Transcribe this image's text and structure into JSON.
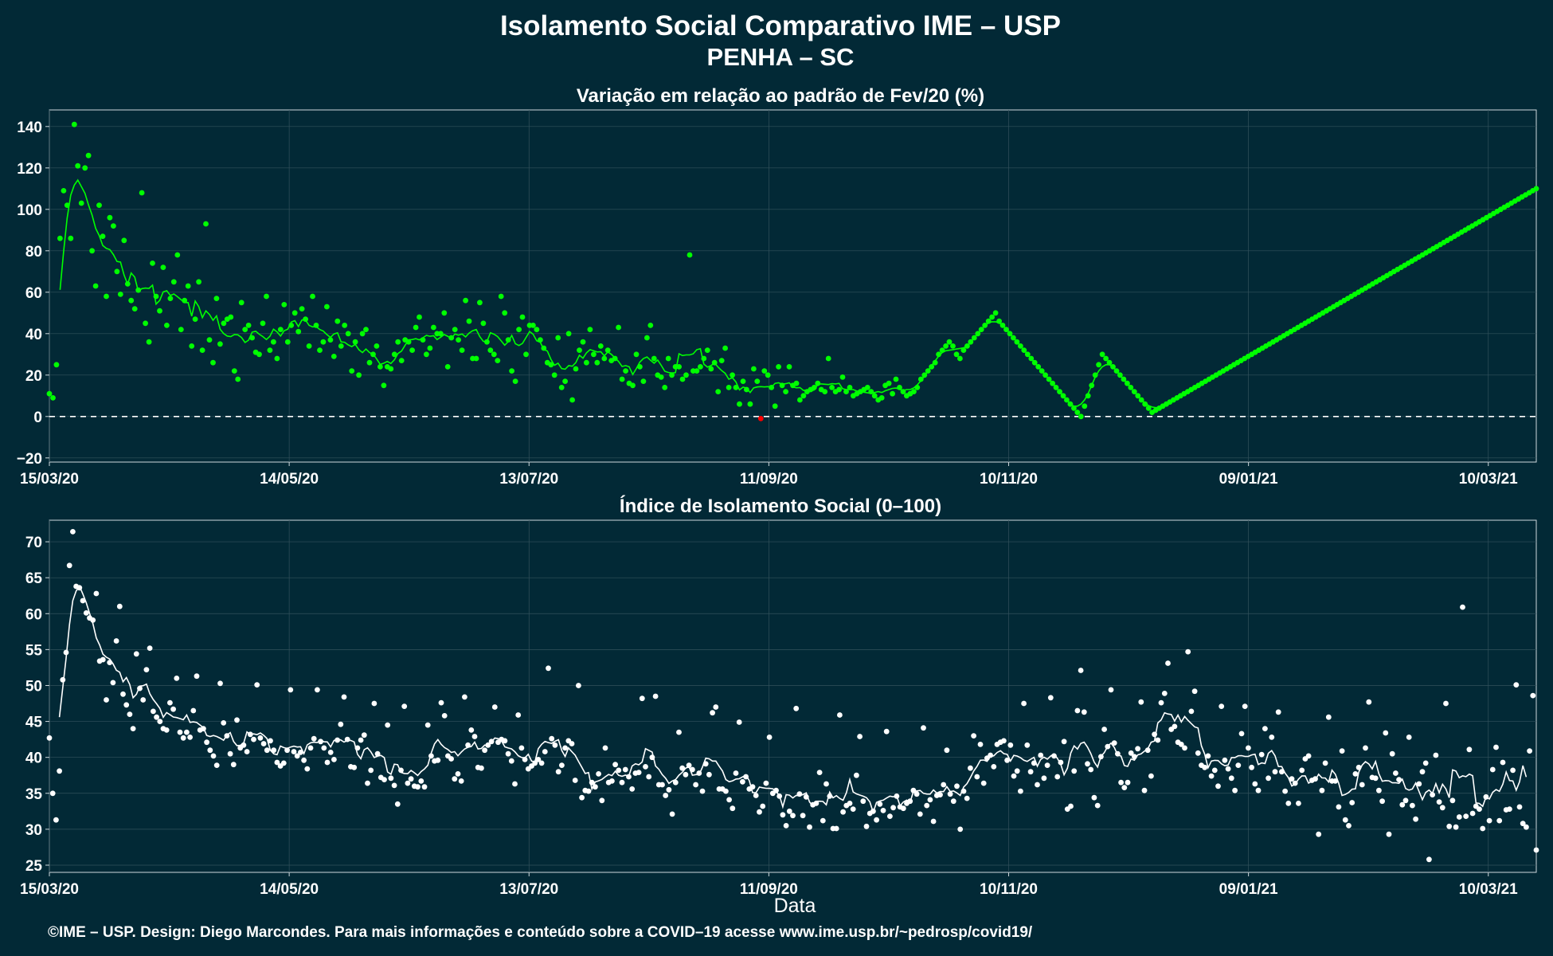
{
  "title_line1": "Isolamento Social Comparativo IME – USP",
  "title_line2": "PENHA – SC",
  "xlabel": "Data",
  "caption": "©IME – USP. Design: Diego Marcondes. Para mais informações e conteúdo sobre a COVID–19 acesse www.ime.usp.br/~pedrosp/covid19/",
  "colors": {
    "background": "#022936",
    "grid": "#33525c",
    "top_points": "#00ff00",
    "top_negative": "#ff0000",
    "bottom_points": "#ffffff"
  },
  "chart_data": [
    {
      "type": "scatter",
      "title": "Variação em relação ao padrão de Fev/20 (%)",
      "x_start": "15/03/20",
      "x_end": "22/03/21",
      "x_ticks": [
        "15/03/20",
        "14/05/20",
        "13/07/20",
        "11/09/20",
        "10/11/20",
        "09/01/21",
        "10/03/21"
      ],
      "y_ticks": [
        -20,
        0,
        20,
        40,
        60,
        80,
        100,
        120,
        140
      ],
      "ylim": [
        -22,
        148
      ],
      "reference_line": 0,
      "smoothing": "7-day moving average line",
      "series": [
        {
          "values": [
            11,
            9,
            25,
            86,
            109,
            102,
            86,
            141,
            121,
            103,
            120,
            126,
            80,
            63,
            102,
            87,
            58,
            96,
            92,
            70,
            59,
            85,
            64,
            56,
            52,
            61,
            108,
            45,
            36,
            74,
            58,
            51,
            72,
            44,
            57,
            65,
            78,
            42,
            56,
            63,
            34,
            47,
            65,
            32,
            93,
            37,
            26,
            57,
            35,
            45,
            47,
            48,
            22,
            18,
            55,
            42,
            44,
            38,
            31,
            30,
            45,
            58,
            32,
            36,
            28,
            42,
            54,
            36,
            44,
            50,
            41,
            52,
            47,
            34,
            58,
            44,
            32,
            36,
            53,
            37,
            29,
            46,
            34,
            44,
            40,
            22,
            36,
            20,
            40,
            42,
            26,
            30,
            34,
            24,
            15,
            24,
            23,
            30,
            36,
            27,
            37,
            36,
            32,
            43,
            48,
            37,
            30,
            33,
            43,
            40,
            40,
            50,
            24,
            38,
            42,
            37,
            32,
            56,
            46,
            28,
            28,
            55,
            45,
            36,
            32,
            30,
            27,
            58,
            50,
            37,
            22,
            17,
            42,
            48,
            30,
            44,
            44,
            42,
            37,
            33,
            26,
            25,
            20,
            38,
            14,
            17,
            40,
            8,
            23,
            32,
            36,
            26,
            42,
            30,
            26,
            34,
            28,
            32,
            27,
            28,
            43,
            18,
            22,
            16,
            15,
            30,
            24,
            17,
            38,
            44,
            28,
            20,
            19,
            14,
            28,
            20,
            24,
            24,
            18,
            20,
            78,
            22,
            22,
            24,
            28,
            32,
            23,
            26,
            12,
            27,
            33,
            14,
            20,
            14,
            6,
            17,
            13,
            6,
            23,
            17,
            -1,
            22,
            20,
            14,
            5,
            24,
            15,
            12,
            24,
            15,
            16,
            8,
            10,
            12,
            13,
            14,
            16,
            13,
            12,
            28,
            14,
            12,
            13,
            19,
            12,
            14,
            10,
            11,
            12,
            13,
            14,
            12,
            10,
            8,
            9,
            15,
            16,
            11,
            18,
            14,
            12,
            10,
            11,
            12,
            14,
            18,
            20,
            22,
            24,
            26,
            30,
            32,
            34,
            36,
            34,
            30,
            28,
            32,
            34,
            36,
            38,
            40,
            42,
            44,
            46,
            48,
            50,
            46,
            44,
            42,
            40,
            38,
            36,
            34,
            32,
            30,
            28,
            26,
            24,
            22,
            20,
            18,
            16,
            14,
            12,
            10,
            8,
            6,
            4,
            2,
            0,
            5,
            10,
            15,
            20,
            25,
            30,
            28,
            26,
            24,
            22,
            20,
            18,
            16,
            14,
            12,
            10,
            8,
            6,
            4,
            2,
            3,
            4,
            5,
            6,
            7,
            8,
            9,
            10,
            11,
            12,
            13,
            14,
            15,
            16,
            17,
            18,
            19,
            20,
            21,
            22,
            23,
            24,
            25,
            26,
            27,
            28,
            29,
            30,
            31,
            32,
            33,
            34,
            35,
            36,
            37,
            38,
            39,
            40,
            41,
            42,
            43,
            44,
            45,
            46,
            47,
            48,
            49,
            50,
            51,
            52,
            53,
            54,
            55,
            56,
            57,
            58,
            59,
            60,
            61,
            62,
            63,
            64,
            65,
            66,
            67,
            68,
            69,
            70,
            71,
            72,
            73,
            74,
            75,
            76,
            77,
            78,
            79,
            80,
            81,
            82,
            83,
            84,
            85,
            86,
            87,
            88,
            89,
            90,
            91,
            92,
            93,
            94,
            95,
            96,
            97,
            98,
            99,
            100,
            101,
            102,
            103,
            104,
            105,
            106,
            107,
            108,
            109,
            110
          ]
        }
      ]
    },
    {
      "type": "scatter",
      "title": "Índice de Isolamento Social (0–100)",
      "x_start": "15/03/20",
      "x_end": "22/03/21",
      "x_ticks": [
        "15/03/20",
        "14/05/20",
        "13/07/20",
        "11/09/20",
        "10/11/20",
        "09/01/21",
        "10/03/21"
      ],
      "y_ticks": [
        25,
        30,
        35,
        40,
        45,
        50,
        55,
        60,
        65,
        70
      ],
      "ylim": [
        24,
        73
      ],
      "smoothing": "7-day moving average line",
      "series": [
        {
          "values": [
            42.7,
            35,
            31.3,
            38.1,
            50.8,
            54.6,
            66.7,
            71.4,
            63.8,
            63.6,
            61.8,
            60.1,
            59.4,
            59.1,
            62.8,
            53.4,
            53.6,
            48,
            53.2,
            50.4,
            56.2,
            61,
            48.8,
            47.3,
            46,
            44,
            54.4,
            49.6,
            48,
            52.2,
            55.2,
            46.4,
            45.6,
            45,
            44,
            43.8,
            47.6,
            46.7,
            51,
            43.5,
            42.7,
            43.5,
            42.8,
            46.5,
            51.3,
            43.8,
            44,
            42.1,
            41,
            40.2,
            38.9,
            50.3,
            44.8,
            43,
            40.5,
            39,
            45.2,
            41.3,
            41.7,
            40.8,
            43.2,
            42.5,
            50.1,
            42.7,
            41.9,
            41,
            42.3,
            41,
            39.3,
            38.8,
            39.2,
            41,
            49.4,
            40.8,
            40.2,
            40.7,
            39.6,
            38.4,
            41.3,
            42.6,
            49.4,
            42.2,
            41.3,
            39.3,
            40.7,
            39.7,
            42.4,
            44.6,
            48.4,
            42.5,
            38.7,
            38.6,
            41.3,
            42.4,
            43.1,
            36.4,
            38.2,
            47.5,
            40.5,
            37.2,
            36.9,
            44.5,
            37.1,
            36.1,
            33.5,
            38.2,
            47.1,
            36.4,
            37,
            36,
            35.9,
            36.7,
            35.9,
            44.5,
            40.2,
            39.5,
            39.6,
            47.6,
            45.8,
            40.2,
            39.8,
            37,
            37.7,
            36.7,
            48.4,
            41.7,
            43.8,
            42.9,
            38.6,
            38.5,
            41,
            41.7,
            42.2,
            47,
            42.1,
            42.5,
            42.3,
            40.5,
            39.5,
            36.3,
            45.9,
            41.3,
            39.7,
            38.4,
            38.8,
            39.2,
            39.7,
            39.2,
            40.8,
            52.4,
            42.6,
            41.7,
            38,
            38.9,
            41.3,
            42.3,
            41.9,
            36.8,
            50,
            34.4,
            35.4,
            35.3,
            36.5,
            35.9,
            37.7,
            34,
            41.3,
            36.5,
            36.7,
            39,
            38.2,
            36.5,
            38.3,
            37.3,
            35.6,
            37.8,
            37.9,
            48.2,
            38.7,
            37.3,
            40,
            48.5,
            36.2,
            36.2,
            34.7,
            35.5,
            32.1,
            36.5,
            43.5,
            38.5,
            37.6,
            38.9,
            38.3,
            36.2,
            37.8,
            35.3,
            39.1,
            37.6,
            46.2,
            47,
            35.6,
            35.6,
            35.3,
            34.1,
            32.9,
            37.8,
            44.9,
            36.6,
            37.3,
            35.6,
            35.9,
            34.7,
            32.4,
            33.2,
            36.4,
            42.8,
            35,
            35.4,
            34.6,
            32,
            30.5,
            32.5,
            31.9,
            46.8,
            34.9,
            31.9,
            34.5,
            30.3,
            33.4,
            33.6,
            37.9,
            31.2,
            36.3,
            34.6,
            30.1,
            30.1,
            45.9,
            32.4,
            33.3,
            33.6,
            32.8,
            37.5,
            42.9,
            33.9,
            30.4,
            32.2,
            32.5,
            31.3,
            33.5,
            32.6,
            43.6,
            31.8,
            33,
            34.6,
            33.1,
            32.9,
            33.6,
            33.9,
            35.4,
            34.9,
            32.1,
            44.1,
            33.3,
            34.1,
            31.1,
            34.7,
            34.8,
            36.2,
            41,
            34.9,
            33.9,
            36,
            30,
            35.3,
            34.3,
            38.5,
            43,
            37.3,
            41.8,
            36.4,
            39.9,
            40.3,
            38.7,
            41.8,
            42.1,
            42.3,
            39.6,
            41.7,
            37.4,
            38.1,
            35.3,
            47.5,
            41.7,
            38,
            39.2,
            36.2,
            40.3,
            37.1,
            38.9,
            48.3,
            40.2,
            37.3,
            39.3,
            42.2,
            32.8,
            33.2,
            38.1,
            46.5,
            52.1,
            46.3,
            39.1,
            38.3,
            34.4,
            33.3,
            40.1,
            43.9,
            41.5,
            49.4,
            42,
            40.5,
            36.5,
            35.8,
            36.5,
            40.6,
            40.1,
            41.2,
            47.7,
            35.4,
            41,
            37.4,
            43.2,
            42.4,
            47.6,
            48.9,
            53.1,
            43.9,
            44.3,
            42.1,
            41.8,
            41.3,
            54.7,
            46.4,
            49.2,
            40.6,
            38.9,
            38.6,
            40.2,
            37.4,
            38.2,
            36,
            47.1,
            39.6,
            38.4,
            37.1,
            35.4,
            38.9,
            43.3,
            47.1,
            41.3,
            38.6,
            36.3,
            35.4,
            40.4,
            44,
            37.1,
            42.8,
            38,
            46.3,
            38,
            35.3,
            33.6,
            37,
            36.4,
            33.6,
            38.2,
            39.8,
            40.2,
            36.8,
            37,
            29.3,
            35.4,
            39.2,
            45.6,
            36.7,
            36.7,
            33.1,
            40.9,
            31.3,
            30.5,
            33.7,
            37.7,
            38.6,
            36.2,
            41.3,
            47.7,
            37.2,
            37.1,
            35.4,
            33.9,
            43.4,
            29.3,
            40.5,
            37.8,
            36.9,
            33.4,
            34,
            42.8,
            33.3,
            31.4,
            36.3,
            38,
            39.2,
            25.8,
            34.8,
            40.3,
            33.8,
            33,
            47.5,
            30.4,
            34,
            30.3,
            31.7,
            60.9,
            31.8,
            41.1,
            32.2,
            33.2,
            32.8,
            30.1,
            34.5,
            31.2,
            38.3,
            41.4,
            31.2,
            39.3,
            32.7,
            32.8,
            38.2,
            50.1,
            33.1,
            30.8,
            30.3,
            40.9,
            48.6,
            27.1
          ]
        }
      ]
    }
  ]
}
